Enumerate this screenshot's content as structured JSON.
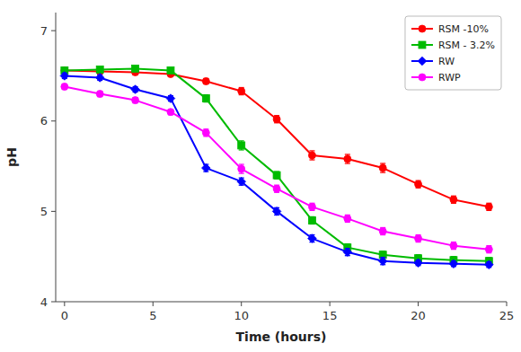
{
  "chart_data": {
    "type": "line",
    "xlabel": "Time (hours)",
    "ylabel": "pH",
    "x": [
      0,
      2,
      4,
      6,
      8,
      10,
      12,
      14,
      16,
      18,
      20,
      22,
      24
    ],
    "series": [
      {
        "name": "RSM -10%",
        "color": "#ff0000",
        "marker": "circle",
        "values": [
          6.56,
          6.55,
          6.54,
          6.52,
          6.44,
          6.33,
          6.02,
          5.62,
          5.58,
          5.48,
          5.3,
          5.13,
          5.05
        ],
        "errors": [
          0.03,
          0.03,
          0.03,
          0.03,
          0.03,
          0.04,
          0.04,
          0.05,
          0.05,
          0.05,
          0.04,
          0.04,
          0.04
        ]
      },
      {
        "name": "RSM - 3.2%",
        "color": "#00bb00",
        "marker": "square",
        "values": [
          6.56,
          6.57,
          6.58,
          6.56,
          6.25,
          5.73,
          5.4,
          4.9,
          4.6,
          4.52,
          4.48,
          4.46,
          4.45
        ],
        "errors": [
          0.03,
          0.03,
          0.03,
          0.03,
          0.04,
          0.05,
          0.04,
          0.04,
          0.04,
          0.04,
          0.04,
          0.04,
          0.04
        ]
      },
      {
        "name": "RW",
        "color": "#0000ff",
        "marker": "diamond",
        "values": [
          6.5,
          6.48,
          6.35,
          6.25,
          5.48,
          5.33,
          5.0,
          4.7,
          4.55,
          4.45,
          4.43,
          4.42,
          4.41
        ],
        "errors": [
          0.03,
          0.03,
          0.03,
          0.03,
          0.04,
          0.04,
          0.04,
          0.04,
          0.04,
          0.04,
          0.03,
          0.03,
          0.03
        ]
      },
      {
        "name": "RWP",
        "color": "#ff00ff",
        "marker": "circle",
        "values": [
          6.38,
          6.3,
          6.23,
          6.1,
          5.87,
          5.47,
          5.25,
          5.05,
          4.92,
          4.78,
          4.7,
          4.62,
          4.58
        ],
        "errors": [
          0.03,
          0.03,
          0.03,
          0.03,
          0.04,
          0.05,
          0.04,
          0.04,
          0.04,
          0.04,
          0.04,
          0.04,
          0.04
        ]
      }
    ],
    "xlim": [
      -0.5,
      25
    ],
    "ylim": [
      4,
      7.2
    ],
    "xticks": [
      0,
      5,
      10,
      15,
      20,
      25
    ],
    "yticks": [
      4,
      5,
      6,
      7
    ],
    "grid": false,
    "legend": "upper right"
  }
}
